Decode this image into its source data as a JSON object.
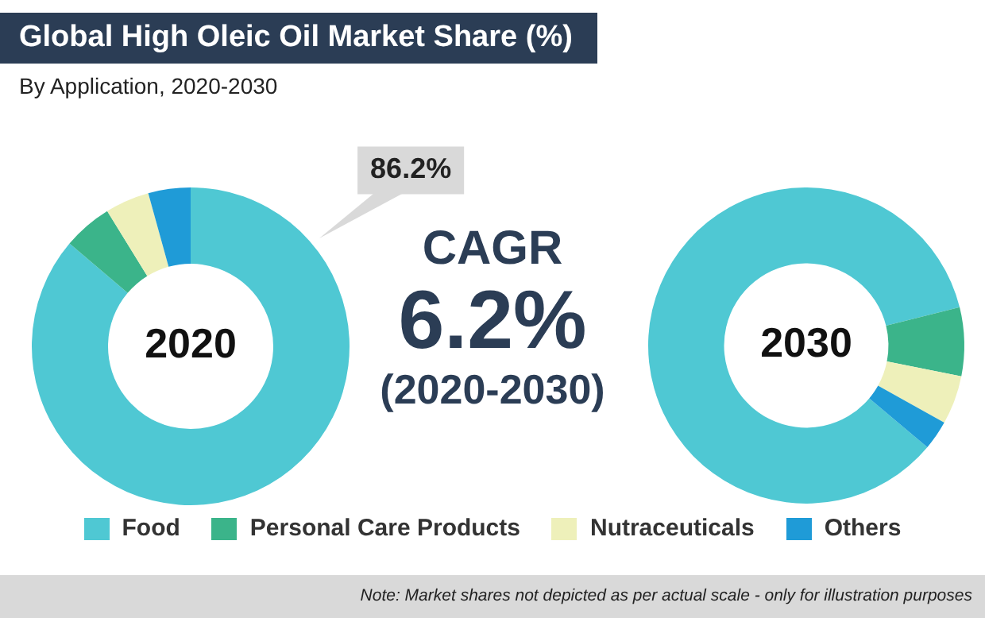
{
  "chart_data": [
    {
      "type": "donut",
      "title": "Global High Oleic Oil Market Share (%)",
      "subtitle": "By Application, 2020-2030",
      "categories": [
        "Food",
        "Personal Care Products",
        "Nutraceuticals",
        "Others"
      ],
      "values": [
        86.2,
        5,
        4.5,
        4.3
      ],
      "value_labels": [
        "86.2%",
        null,
        null,
        null
      ],
      "colors": [
        "#4fc8d3",
        "#3bb48a",
        "#eef0ba",
        "#1f9bd7"
      ],
      "legend": "bottom",
      "annotations": [
        "2020",
        "CAGR",
        "6.2%",
        "(2020-2030)",
        "Note: Market shares not depicted as per actual scale - only for illustration purposes"
      ]
    },
    {
      "type": "donut",
      "categories": [
        null,
        null,
        null,
        null
      ],
      "values": [
        85,
        7,
        5,
        3
      ],
      "colors": [
        "#4fc8d3",
        "#3bb48a",
        "#eef0ba",
        "#1f9bd7"
      ],
      "legend": false,
      "annotations": [
        "2030"
      ]
    }
  ]
}
